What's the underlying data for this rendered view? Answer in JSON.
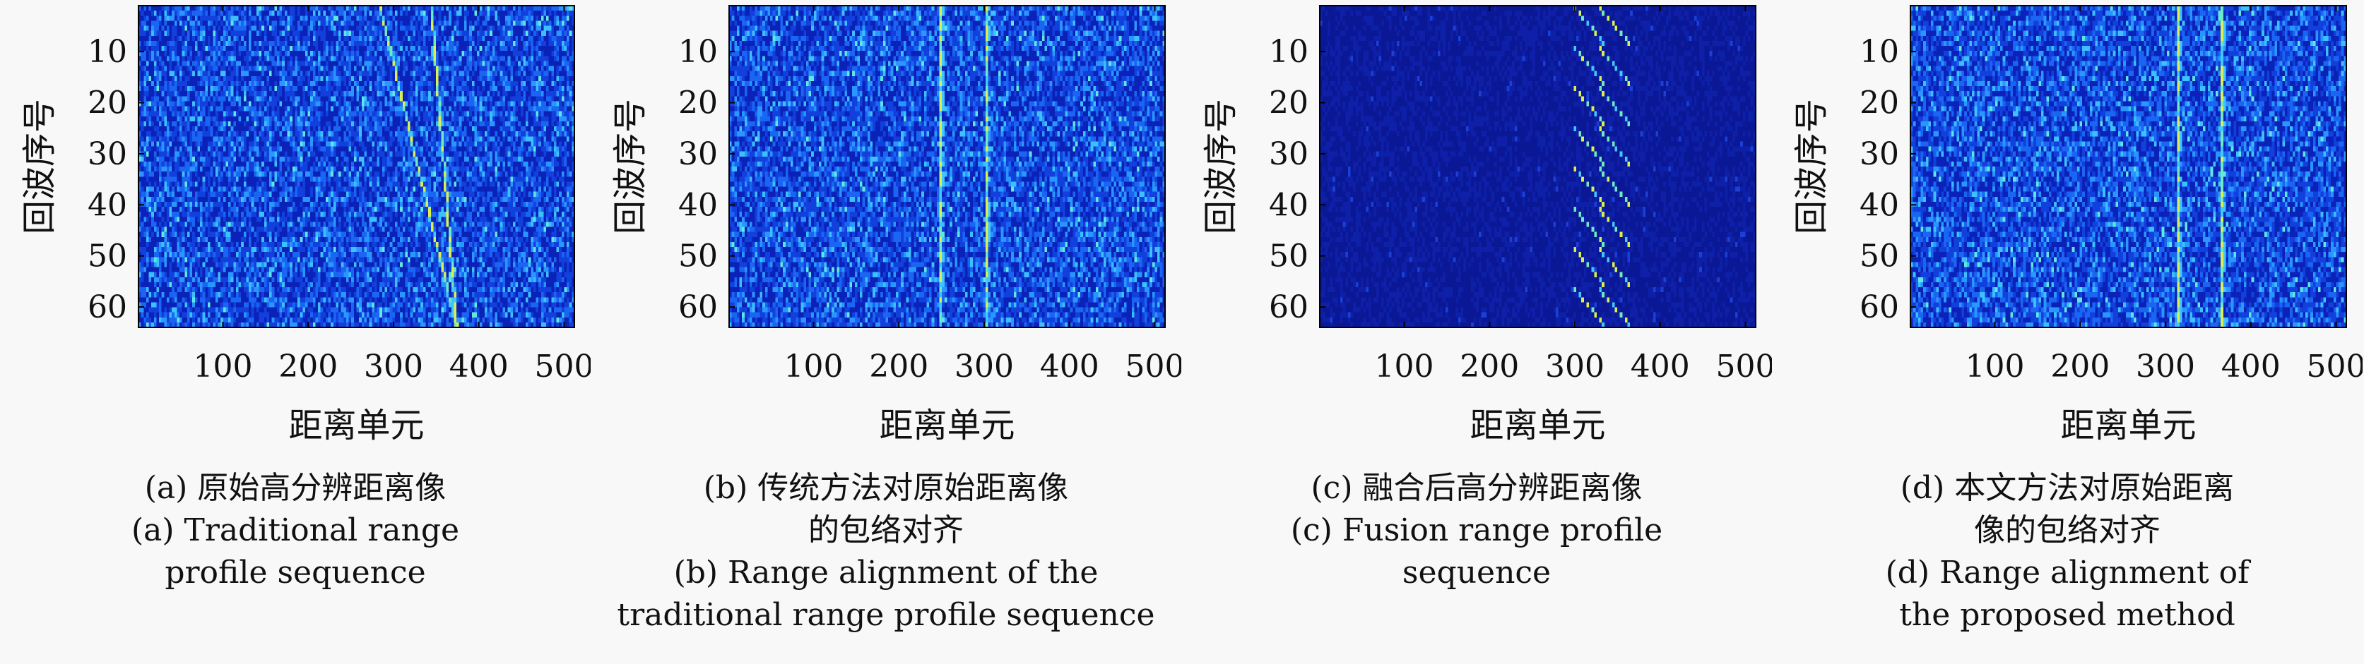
{
  "chart_data": [
    {
      "type": "heatmap",
      "xlabel": "距离单元",
      "ylabel": "回波序号",
      "xlim": [
        1,
        512
      ],
      "ylim": [
        1,
        64
      ],
      "xticks": [
        100,
        200,
        300,
        400,
        500
      ],
      "yticks": [
        10,
        20,
        30,
        40,
        50,
        60
      ],
      "background": "noise",
      "tracks": [
        {
          "x_start": 285,
          "x_end": 375,
          "curve": "sawtooth",
          "period_pulses": 64
        },
        {
          "x_start": 345,
          "x_end": 375,
          "curve": "sawtooth",
          "period_pulses": 64
        }
      ],
      "caption": {
        "cn": "(a) 原始高分辨距离像",
        "en": [
          "(a) Traditional range",
          "profile sequence"
        ]
      }
    },
    {
      "type": "heatmap",
      "xlabel": "距离单元",
      "ylabel": "回波序号",
      "xlim": [
        1,
        512
      ],
      "ylim": [
        1,
        64
      ],
      "xticks": [
        100,
        200,
        300,
        400,
        500
      ],
      "yticks": [
        10,
        20,
        30,
        40,
        50,
        60
      ],
      "background": "noise",
      "tracks": [
        {
          "x_start": 250,
          "x_end": 250,
          "curve": "straight"
        },
        {
          "x_start": 302,
          "x_end": 302,
          "curve": "straight"
        }
      ],
      "caption": {
        "cn": [
          "(b) 传统方法对原始距离像",
          "的包络对齐"
        ],
        "en": [
          "(b) Range alignment of the",
          "traditional range profile sequence"
        ]
      }
    },
    {
      "type": "heatmap",
      "xlabel": "距离单元",
      "ylabel": "回波序号",
      "xlim": [
        1,
        512
      ],
      "ylim": [
        1,
        64
      ],
      "xticks": [
        100,
        200,
        300,
        400,
        500
      ],
      "yticks": [
        10,
        20,
        30,
        40,
        50,
        60
      ],
      "background": "dark",
      "tracks": [
        {
          "x_start": 300,
          "x_end": 340,
          "curve": "sawtooth",
          "period_pulses": 8
        },
        {
          "x_start": 330,
          "x_end": 370,
          "curve": "sawtooth",
          "period_pulses": 8
        }
      ],
      "caption": {
        "cn": "(c) 融合后高分辨距离像",
        "en": [
          "(c) Fusion range profile",
          "sequence"
        ]
      }
    },
    {
      "type": "heatmap",
      "xlabel": "距离单元",
      "ylabel": "回波序号",
      "xlim": [
        1,
        512
      ],
      "ylim": [
        1,
        64
      ],
      "xticks": [
        100,
        200,
        300,
        400,
        500
      ],
      "yticks": [
        10,
        20,
        30,
        40,
        50,
        60
      ],
      "background": "noise",
      "tracks": [
        {
          "x_start": 315,
          "x_end": 315,
          "curve": "straight"
        },
        {
          "x_start": 367,
          "x_end": 367,
          "curve": "straight"
        }
      ],
      "caption": {
        "cn": [
          "(d) 本文方法对原始距离",
          "像的包络对齐"
        ],
        "en": [
          "(d) Range alignment of",
          "the proposed method"
        ]
      }
    }
  ],
  "colors": {
    "noise_low": "#0a2ac8",
    "noise_mid": "#1e64f0",
    "noise_high": "#40c8ff",
    "dark_bg": "#0c1a9a",
    "track": "#c8f060",
    "axis": "#000000"
  }
}
